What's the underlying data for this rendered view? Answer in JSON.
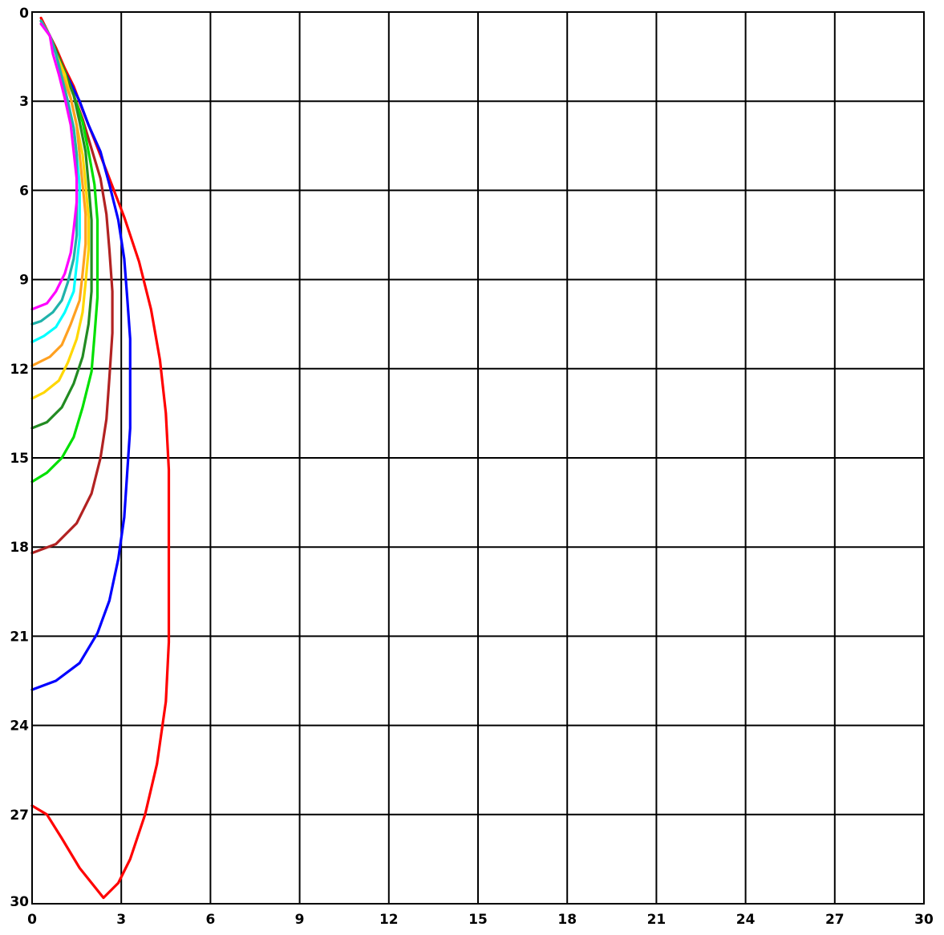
{
  "chart_data": {
    "type": "line",
    "title": "",
    "xlabel": "",
    "ylabel": "",
    "xlim": [
      0,
      30
    ],
    "ylim": [
      0,
      30
    ],
    "y_inverted": true,
    "grid": true,
    "x_ticks": [
      "0",
      "3",
      "6",
      "9",
      "12",
      "15",
      "18",
      "21",
      "24",
      "27",
      "30"
    ],
    "y_ticks": [
      "0",
      "3",
      "6",
      "9",
      "12",
      "15",
      "18",
      "21",
      "24",
      "27",
      "30"
    ],
    "series": [
      {
        "color": "#ff0000",
        "points": [
          [
            0.3,
            0.2
          ],
          [
            0.6,
            0.8
          ],
          [
            0.8,
            1.2
          ],
          [
            1.1,
            1.9
          ],
          [
            1.4,
            2.5
          ],
          [
            1.7,
            3.3
          ],
          [
            2.1,
            4.3
          ],
          [
            2.6,
            5.6
          ],
          [
            3.1,
            6.9
          ],
          [
            3.6,
            8.4
          ],
          [
            4.0,
            10.0
          ],
          [
            4.3,
            11.7
          ],
          [
            4.5,
            13.5
          ],
          [
            4.6,
            15.4
          ],
          [
            4.6,
            17.3
          ],
          [
            4.6,
            19.2
          ],
          [
            4.6,
            21.2
          ],
          [
            4.5,
            23.2
          ],
          [
            4.2,
            25.3
          ],
          [
            3.8,
            27.0
          ],
          [
            3.3,
            28.5
          ],
          [
            2.9,
            29.3
          ],
          [
            2.4,
            29.8
          ],
          [
            1.6,
            28.8
          ],
          [
            1.0,
            27.8
          ],
          [
            0.5,
            27.0
          ],
          [
            0,
            26.7
          ]
        ]
      },
      {
        "color": "#0000ff",
        "points": [
          [
            0.3,
            0.3
          ],
          [
            0.6,
            0.8
          ],
          [
            0.8,
            1.3
          ],
          [
            1.0,
            1.8
          ],
          [
            1.3,
            2.4
          ],
          [
            1.6,
            3.0
          ],
          [
            1.9,
            3.8
          ],
          [
            2.3,
            4.7
          ],
          [
            2.6,
            5.8
          ],
          [
            2.9,
            7.0
          ],
          [
            3.1,
            8.3
          ],
          [
            3.2,
            9.6
          ],
          [
            3.3,
            11.0
          ],
          [
            3.3,
            12.5
          ],
          [
            3.3,
            14.0
          ],
          [
            3.2,
            15.5
          ],
          [
            3.1,
            17.0
          ],
          [
            2.9,
            18.4
          ],
          [
            2.6,
            19.8
          ],
          [
            2.2,
            20.9
          ],
          [
            1.6,
            21.9
          ],
          [
            0.8,
            22.5
          ],
          [
            0,
            22.8
          ]
        ]
      },
      {
        "color": "#b22222",
        "points": [
          [
            0.3,
            0.3
          ],
          [
            0.6,
            0.8
          ],
          [
            0.8,
            1.3
          ],
          [
            1.1,
            2.0
          ],
          [
            1.4,
            2.8
          ],
          [
            1.7,
            3.6
          ],
          [
            2.0,
            4.6
          ],
          [
            2.3,
            5.6
          ],
          [
            2.5,
            6.8
          ],
          [
            2.6,
            8.0
          ],
          [
            2.7,
            9.4
          ],
          [
            2.7,
            10.8
          ],
          [
            2.6,
            12.3
          ],
          [
            2.5,
            13.7
          ],
          [
            2.3,
            15.0
          ],
          [
            2.0,
            16.2
          ],
          [
            1.5,
            17.2
          ],
          [
            0.8,
            17.9
          ],
          [
            0,
            18.2
          ]
        ]
      },
      {
        "color": "#00e000",
        "points": [
          [
            0.3,
            0.3
          ],
          [
            0.6,
            0.8
          ],
          [
            0.8,
            1.3
          ],
          [
            1.1,
            2.0
          ],
          [
            1.4,
            2.8
          ],
          [
            1.7,
            3.7
          ],
          [
            1.9,
            4.7
          ],
          [
            2.1,
            5.8
          ],
          [
            2.2,
            7.0
          ],
          [
            2.2,
            8.3
          ],
          [
            2.2,
            9.6
          ],
          [
            2.1,
            10.9
          ],
          [
            2.0,
            12.1
          ],
          [
            1.7,
            13.3
          ],
          [
            1.4,
            14.3
          ],
          [
            1.0,
            15.0
          ],
          [
            0.5,
            15.5
          ],
          [
            0,
            15.8
          ]
        ]
      },
      {
        "color": "#228b22",
        "points": [
          [
            0.3,
            0.3
          ],
          [
            0.6,
            0.8
          ],
          [
            0.8,
            1.3
          ],
          [
            1.1,
            2.0
          ],
          [
            1.4,
            2.8
          ],
          [
            1.6,
            3.7
          ],
          [
            1.8,
            4.7
          ],
          [
            1.9,
            5.8
          ],
          [
            2.0,
            7.0
          ],
          [
            2.0,
            8.2
          ],
          [
            2.0,
            9.4
          ],
          [
            1.9,
            10.5
          ],
          [
            1.7,
            11.6
          ],
          [
            1.4,
            12.5
          ],
          [
            1.0,
            13.3
          ],
          [
            0.5,
            13.8
          ],
          [
            0,
            14.0
          ]
        ]
      },
      {
        "color": "#ffd700",
        "points": [
          [
            0.3,
            0.3
          ],
          [
            0.6,
            0.8
          ],
          [
            0.8,
            1.4
          ],
          [
            1.1,
            2.1
          ],
          [
            1.3,
            2.9
          ],
          [
            1.5,
            3.8
          ],
          [
            1.7,
            4.8
          ],
          [
            1.8,
            5.8
          ],
          [
            1.9,
            6.9
          ],
          [
            1.9,
            8.0
          ],
          [
            1.8,
            9.1
          ],
          [
            1.7,
            10.1
          ],
          [
            1.5,
            11.0
          ],
          [
            1.2,
            11.8
          ],
          [
            0.9,
            12.4
          ],
          [
            0.4,
            12.8
          ],
          [
            0,
            13.0
          ]
        ]
      },
      {
        "color": "#ffa020",
        "points": [
          [
            0.3,
            0.3
          ],
          [
            0.6,
            0.8
          ],
          [
            0.8,
            1.4
          ],
          [
            1.0,
            2.1
          ],
          [
            1.3,
            2.9
          ],
          [
            1.5,
            3.8
          ],
          [
            1.6,
            4.8
          ],
          [
            1.7,
            5.8
          ],
          [
            1.8,
            6.8
          ],
          [
            1.8,
            7.8
          ],
          [
            1.7,
            8.8
          ],
          [
            1.6,
            9.7
          ],
          [
            1.3,
            10.5
          ],
          [
            1.0,
            11.2
          ],
          [
            0.6,
            11.6
          ],
          [
            0,
            11.9
          ]
        ]
      },
      {
        "color": "#00ffff",
        "points": [
          [
            0.3,
            0.3
          ],
          [
            0.6,
            0.8
          ],
          [
            0.8,
            1.4
          ],
          [
            1.0,
            2.2
          ],
          [
            1.2,
            3.0
          ],
          [
            1.4,
            3.9
          ],
          [
            1.5,
            4.8
          ],
          [
            1.6,
            5.8
          ],
          [
            1.6,
            6.7
          ],
          [
            1.6,
            7.6
          ],
          [
            1.5,
            8.5
          ],
          [
            1.4,
            9.4
          ],
          [
            1.1,
            10.1
          ],
          [
            0.8,
            10.6
          ],
          [
            0.4,
            10.9
          ],
          [
            0,
            11.1
          ]
        ]
      },
      {
        "color": "#20b2aa",
        "points": [
          [
            0.3,
            0.3
          ],
          [
            0.6,
            0.8
          ],
          [
            0.8,
            1.4
          ],
          [
            1.0,
            2.2
          ],
          [
            1.2,
            3.0
          ],
          [
            1.4,
            3.9
          ],
          [
            1.5,
            4.8
          ],
          [
            1.5,
            5.7
          ],
          [
            1.5,
            6.6
          ],
          [
            1.5,
            7.5
          ],
          [
            1.4,
            8.3
          ],
          [
            1.2,
            9.1
          ],
          [
            1.0,
            9.7
          ],
          [
            0.7,
            10.1
          ],
          [
            0.3,
            10.4
          ],
          [
            0,
            10.5
          ]
        ]
      },
      {
        "color": "#ff00ff",
        "points": [
          [
            0.3,
            0.4
          ],
          [
            0.6,
            0.8
          ],
          [
            0.7,
            1.4
          ],
          [
            0.9,
            2.1
          ],
          [
            1.1,
            2.9
          ],
          [
            1.3,
            3.8
          ],
          [
            1.4,
            4.7
          ],
          [
            1.5,
            5.6
          ],
          [
            1.5,
            6.4
          ],
          [
            1.4,
            7.3
          ],
          [
            1.3,
            8.1
          ],
          [
            1.1,
            8.8
          ],
          [
            0.8,
            9.4
          ],
          [
            0.5,
            9.8
          ],
          [
            0,
            10.0
          ]
        ]
      }
    ]
  }
}
